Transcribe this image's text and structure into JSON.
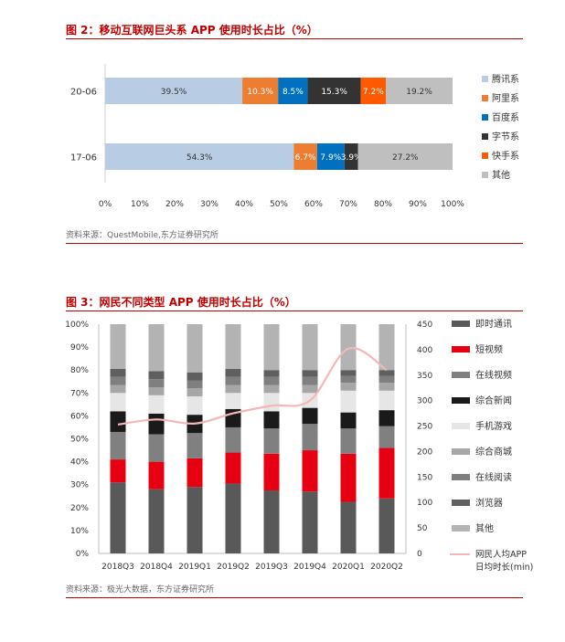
{
  "figure2": {
    "title": "图 2：移动互联网巨头系 APP 使用时长占比（%）",
    "source": "资料来源：QuestMobile,东方证券研究所",
    "chart_data": {
      "type": "bar",
      "orientation": "horizontal-stacked-100",
      "categories": [
        "20-06",
        "17-06"
      ],
      "series": [
        {
          "name": "腾讯系",
          "color": "#b8cce4",
          "values": [
            39.5,
            54.3
          ]
        },
        {
          "name": "阿里系",
          "color": "#ed7d31",
          "values": [
            10.3,
            6.7
          ]
        },
        {
          "name": "百度系",
          "color": "#0070c0",
          "values": [
            8.5,
            7.9
          ]
        },
        {
          "name": "字节系",
          "color": "#333333",
          "values": [
            15.3,
            3.9
          ]
        },
        {
          "name": "快手系",
          "color": "#ff5a00",
          "values": [
            7.2,
            0
          ]
        },
        {
          "name": "其他",
          "color": "#bfbfbf",
          "values": [
            19.2,
            27.2
          ]
        }
      ],
      "data_labels": [
        [
          "39.5%",
          "10.3%",
          "8.5%",
          "15.3%",
          "7.2%",
          "19.2%"
        ],
        [
          "54.3%",
          "6.7%",
          "7.9%",
          "3.9%",
          "",
          "27.2%"
        ]
      ],
      "xticks": [
        "0%",
        "10%",
        "20%",
        "30%",
        "40%",
        "50%",
        "60%",
        "70%",
        "80%",
        "90%",
        "100%"
      ],
      "xlim": [
        0,
        100
      ],
      "grid": false,
      "legend": "right"
    }
  },
  "figure3": {
    "title": "图 3：网民不同类型 APP 使用时长占比（%）",
    "source": "资料来源：极光大数据，东方证券研究所",
    "chart_data": {
      "type": "bar",
      "orientation": "vertical-stacked-100-with-line",
      "categories": [
        "2018Q3",
        "2018Q4",
        "2019Q1",
        "2019Q2",
        "2019Q3",
        "2019Q4",
        "2020Q1",
        "2020Q2"
      ],
      "series": [
        {
          "name": "即时通讯",
          "color": "#595959",
          "values": [
            31,
            28,
            29,
            30.5,
            27.5,
            27,
            22.5,
            24
          ]
        },
        {
          "name": "短视频",
          "color": "#e60012",
          "values": [
            10,
            12,
            12.5,
            13.5,
            16,
            18,
            21,
            22
          ]
        },
        {
          "name": "在线视频",
          "color": "#808080",
          "values": [
            12,
            12,
            11,
            11,
            11,
            11.5,
            11,
            9.5
          ]
        },
        {
          "name": "综合新闻",
          "color": "#1a1a1a",
          "values": [
            9,
            9,
            8,
            8,
            7.5,
            7,
            7,
            7
          ]
        },
        {
          "name": "手机游戏",
          "color": "#e6e6e6",
          "values": [
            8,
            8,
            8,
            7,
            8,
            6.5,
            9.5,
            8.5
          ]
        },
        {
          "name": "综合商城",
          "color": "#a6a6a6",
          "values": [
            3.5,
            3.5,
            3.5,
            3.5,
            3.5,
            3.5,
            3.5,
            3.5
          ]
        },
        {
          "name": "在线阅读",
          "color": "#7f7f7f",
          "values": [
            3.5,
            3.5,
            3.5,
            3.5,
            3.5,
            3.5,
            3,
            3
          ]
        },
        {
          "name": "浏览器",
          "color": "#5f5f5f",
          "values": [
            3.5,
            3.5,
            3.5,
            3.5,
            3,
            3,
            2.5,
            2.5
          ]
        },
        {
          "name": "其他",
          "color": "#b3b3b3",
          "values": [
            19.5,
            20.5,
            21,
            19.5,
            20,
            20,
            20,
            20
          ]
        }
      ],
      "line": {
        "name": "网民人均APP\n日均时长(min)",
        "legend_lines": [
          "网民人均APP",
          "日均时长(min)"
        ],
        "color": "#f4b7b7",
        "values": [
          253,
          263,
          255,
          275,
          290,
          300,
          402,
          360
        ]
      },
      "yticks_left": [
        "0%",
        "10%",
        "20%",
        "30%",
        "40%",
        "50%",
        "60%",
        "70%",
        "80%",
        "90%",
        "100%"
      ],
      "yticks_right": [
        "0",
        "50",
        "100",
        "150",
        "200",
        "250",
        "300",
        "350",
        "400",
        "450"
      ],
      "ylim_left": [
        0,
        100
      ],
      "ylim_right": [
        0,
        450
      ],
      "grid": false,
      "legend": "right"
    }
  }
}
